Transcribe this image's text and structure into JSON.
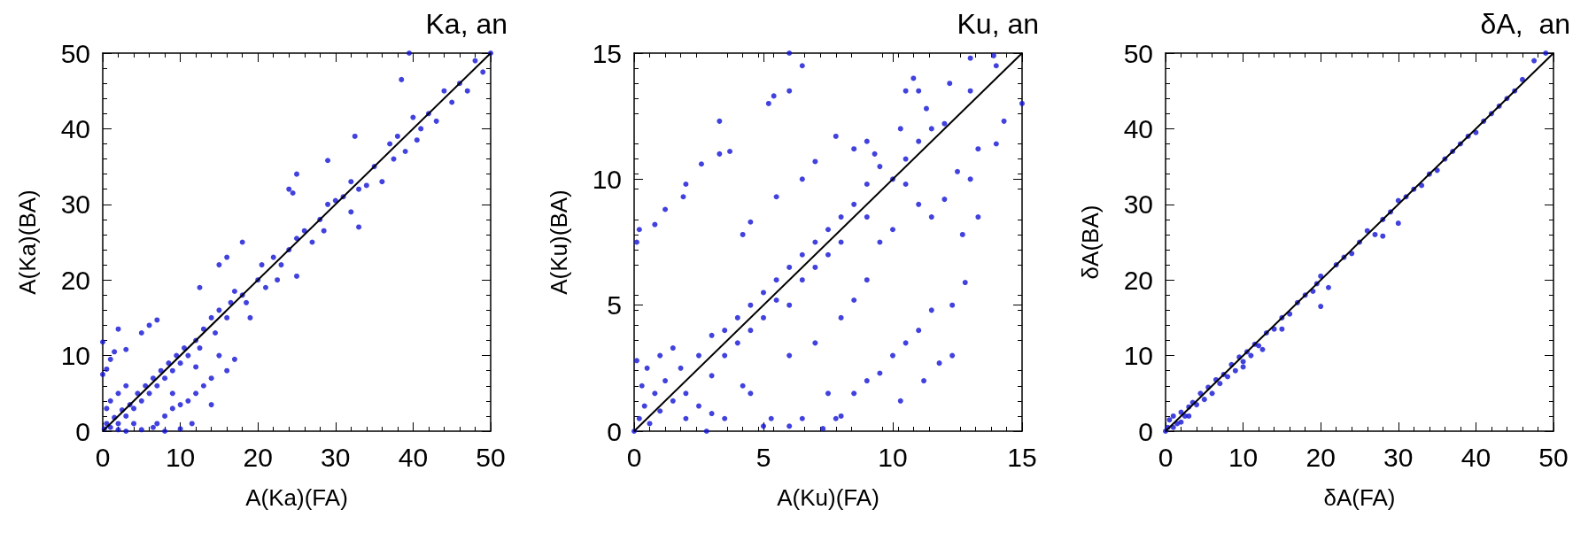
{
  "chart_data": [
    {
      "type": "scatter",
      "title": "Ka, an",
      "xlabel": "A(Ka)(FA)",
      "ylabel": "A(Ka)(BA)",
      "xlim": [
        0,
        50
      ],
      "ylim": [
        0,
        50
      ],
      "xticks": [
        0,
        10,
        20,
        30,
        40,
        50
      ],
      "yticks": [
        0,
        10,
        20,
        30,
        40,
        50
      ],
      "grid": false,
      "series": [
        {
          "marker": "circle",
          "color": "#1212d6",
          "x": [
            0.2,
            0.5,
            1,
            1.5,
            2,
            2.5,
            3,
            3.5,
            4,
            4.5,
            5,
            5.5,
            6,
            6.5,
            7,
            7.5,
            8,
            8.5,
            9,
            9.5,
            10,
            10.5,
            11,
            12,
            12.5,
            13,
            14,
            14.5,
            15,
            16,
            16.5,
            17,
            18,
            18.5,
            19,
            20,
            20.5,
            21,
            22,
            22.5,
            23,
            24,
            25,
            25,
            26,
            27,
            28,
            28.5,
            29,
            29,
            30,
            31,
            32,
            32,
            33,
            33,
            34,
            35,
            36,
            37,
            37.5,
            38,
            39,
            40,
            40.5,
            41,
            42,
            43,
            44,
            45,
            46,
            47,
            48,
            49,
            50,
            39.5,
            38.5,
            32.5,
            24,
            25,
            24.5,
            16,
            15,
            18,
            12.5,
            0,
            0,
            0.5,
            1,
            1.5,
            2,
            3,
            5,
            6,
            7,
            0.5,
            1,
            2,
            3,
            7,
            8,
            9,
            10,
            11,
            12,
            13,
            14,
            15,
            16,
            17,
            8,
            10,
            11.5,
            14,
            9,
            12,
            6.5,
            5,
            3,
            4,
            2
          ],
          "values": [
            0.3,
            1,
            0.5,
            1.8,
            1,
            2.8,
            2,
            3.5,
            3,
            5,
            4,
            6,
            5,
            7,
            6,
            8,
            7,
            9,
            8,
            10,
            9,
            11,
            10,
            12,
            11,
            13.5,
            15,
            13,
            16,
            15,
            17,
            18.5,
            18,
            17,
            15,
            20,
            22,
            19,
            23,
            20,
            22,
            24,
            25.5,
            20.5,
            26.5,
            25,
            28,
            26.5,
            30,
            35.8,
            30.5,
            31,
            29,
            33,
            32,
            27,
            32.5,
            35,
            33,
            38,
            36,
            39,
            37,
            41.5,
            38.5,
            40,
            42,
            41,
            45,
            43.5,
            46,
            45,
            49,
            47.5,
            50,
            50,
            46.5,
            39,
            32,
            34,
            31.5,
            23,
            22,
            25,
            19,
            11.8,
            7.5,
            8.2,
            9.5,
            10.5,
            13.5,
            10.8,
            13,
            14,
            14.7,
            3,
            4,
            5,
            6,
            1,
            2,
            3,
            3.5,
            4,
            5,
            6,
            7,
            10,
            8,
            9.5,
            0,
            0.3,
            1,
            3.5,
            5,
            8.5,
            0.5,
            0.2,
            0,
            1,
            0.2
          ]
        },
        {
          "type": "line",
          "marker": "none",
          "color": "#000000",
          "x": [
            0,
            50
          ],
          "values": [
            0,
            50
          ]
        }
      ]
    },
    {
      "type": "scatter",
      "title": "Ku, an",
      "xlabel": "A(Ku)(FA)",
      "ylabel": "A(Ku)(BA)",
      "xlim": [
        0,
        15
      ],
      "ylim": [
        0,
        15
      ],
      "xticks": [
        0,
        5,
        10,
        15
      ],
      "yticks": [
        0,
        5,
        10,
        15
      ],
      "grid": false,
      "series": [
        {
          "marker": "circle",
          "color": "#1212d6",
          "x": [
            0,
            0.2,
            0.4,
            0.6,
            0.8,
            1,
            1.2,
            1.5,
            1.8,
            2,
            0.3,
            0.1,
            0.5,
            1,
            1.5,
            2,
            2.5,
            2.5,
            3,
            3,
            3.5,
            3.5,
            4,
            4,
            4.5,
            4.5,
            5,
            5,
            5.5,
            5.5,
            6,
            6,
            6.5,
            6.5,
            7,
            7,
            7.5,
            7.5,
            8,
            8,
            8.5,
            9,
            9,
            9.5,
            10,
            10.5,
            11,
            11.5,
            12,
            13,
            14,
            0.1,
            0.2,
            0.8,
            1.2,
            1.9,
            2,
            2.6,
            3.3,
            3.7,
            3.3,
            5.2,
            5.4,
            6,
            6.5,
            6,
            4.2,
            4.5,
            5.5,
            6.5,
            7,
            7.8,
            8.5,
            9,
            9.3,
            10.3,
            10.5,
            11,
            11.3,
            10.8,
            12.2,
            13,
            13.9,
            6,
            7,
            8,
            8.5,
            9,
            9.5,
            10,
            10.5,
            11,
            11.5,
            12,
            12.5,
            13,
            13.3,
            14,
            14.3,
            15,
            12.7,
            13.3,
            12.8,
            10,
            10.5,
            11,
            11.5,
            12.3,
            12.3,
            11.2,
            11.8,
            9,
            9.5,
            8.5,
            10.3,
            7.5,
            7.8,
            6.5,
            6,
            5.3,
            5,
            7.3,
            4.5,
            4.2,
            3.5,
            3,
            2.8,
            8
          ],
          "values": [
            0,
            0.5,
            1,
            0.3,
            1.5,
            0.8,
            2,
            1.2,
            2.5,
            1.5,
            1.8,
            2.8,
            2.5,
            3,
            3.3,
            0.5,
            1,
            3,
            3.8,
            2.2,
            4,
            3,
            4.5,
            3.5,
            5,
            4,
            5.5,
            4.5,
            6,
            5.2,
            6.5,
            5,
            7,
            6,
            7.5,
            6.5,
            8,
            7,
            8.5,
            7.5,
            9,
            9.8,
            8.5,
            10.5,
            10,
            10.8,
            11.5,
            12,
            12.2,
            13.5,
            14.5,
            7.5,
            8,
            8.2,
            8.8,
            9.3,
            9.8,
            10.6,
            11,
            11.1,
            12.3,
            13,
            13.3,
            13.5,
            14.5,
            15,
            7.8,
            8.3,
            9.3,
            10,
            10.7,
            11.7,
            11.2,
            11.5,
            11,
            12,
            13.5,
            13.5,
            12.8,
            14,
            13.8,
            14.8,
            14.9,
            3,
            3.5,
            4.5,
            5.2,
            6,
            7.5,
            8,
            9.8,
            9,
            8.5,
            9.2,
            10.3,
            10,
            11.2,
            11.4,
            12.3,
            13,
            7.8,
            8.5,
            5.9,
            3,
            3.5,
            4,
            4.8,
            5,
            3,
            2,
            2.7,
            2,
            2.3,
            1.5,
            1.2,
            1.5,
            0.5,
            0.5,
            0.2,
            0.5,
            0.2,
            0.1,
            1.5,
            1.8,
            0.5,
            0.7,
            0,
            0.6
          ]
        },
        {
          "type": "line",
          "marker": "none",
          "color": "#000000",
          "x": [
            0,
            15
          ],
          "values": [
            0,
            15
          ]
        }
      ]
    },
    {
      "type": "scatter",
      "title": "δA,  an",
      "xlabel": "δA(FA)",
      "ylabel": "δA(BA)",
      "xlim": [
        0,
        50
      ],
      "ylim": [
        0,
        50
      ],
      "xticks": [
        0,
        10,
        20,
        30,
        40,
        50
      ],
      "yticks": [
        0,
        10,
        20,
        30,
        40,
        50
      ],
      "grid": false,
      "series": [
        {
          "marker": "circle",
          "color": "#1212d6",
          "x": [
            0,
            0.3,
            0.5,
            1,
            1,
            1.5,
            2,
            2,
            2.5,
            3,
            3,
            3.5,
            4,
            4.5,
            5,
            5.5,
            6,
            6.5,
            7,
            7.5,
            8,
            8.5,
            9,
            9.5,
            10,
            10.5,
            11,
            11.5,
            12,
            12.5,
            13,
            14,
            15,
            16,
            17,
            18,
            19,
            19.5,
            20,
            21,
            22,
            23,
            24,
            25,
            26,
            27,
            28,
            28,
            29,
            30,
            30,
            31,
            32,
            33,
            34,
            35,
            36,
            37,
            38,
            39,
            40,
            41,
            42,
            43,
            44,
            45,
            46,
            47.5,
            49,
            20,
            15,
            10
          ],
          "values": [
            0,
            0.5,
            1.5,
            0.5,
            2,
            1,
            2.5,
            1.2,
            2,
            3.2,
            2,
            3.8,
            3.5,
            5,
            4.2,
            5.8,
            5,
            6.8,
            6.3,
            7.5,
            7.2,
            8.8,
            8,
            9.8,
            9.2,
            10.5,
            10,
            11.5,
            11.3,
            10.8,
            13,
            13.5,
            15,
            15.5,
            17,
            18,
            18.5,
            19.5,
            20.5,
            19,
            22,
            23,
            23.5,
            25,
            26.5,
            26,
            28,
            25.8,
            29,
            30.5,
            27.5,
            31,
            32,
            32.5,
            34,
            34.5,
            36,
            37,
            38,
            39,
            39.5,
            41,
            42,
            43,
            44,
            45,
            46.5,
            49,
            50,
            16.5,
            13.5,
            8.5
          ]
        },
        {
          "type": "line",
          "marker": "none",
          "color": "#000000",
          "x": [
            0,
            50
          ],
          "values": [
            0,
            50
          ]
        }
      ]
    }
  ]
}
